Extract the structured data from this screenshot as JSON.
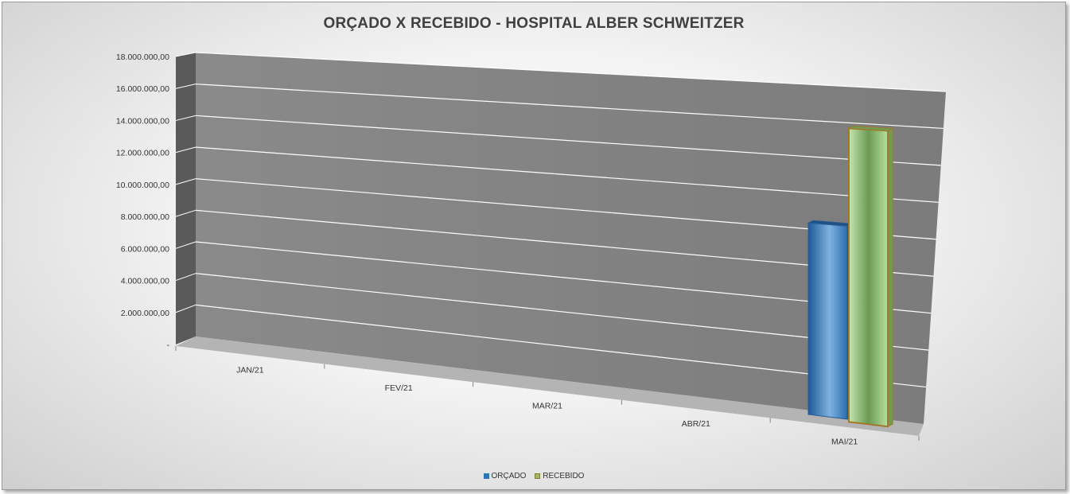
{
  "chart_data": {
    "type": "bar",
    "title": "ORÇADO X RECEBIDO - HOSPITAL ALBER SCHWEITZER",
    "categories": [
      "JAN/21",
      "FEV/21",
      "MAR/21",
      "ABR/21",
      "MAI/21"
    ],
    "series": [
      {
        "name": "ORÇADO",
        "values": [
          null,
          null,
          null,
          null,
          10200000
        ],
        "color": "#2e75b6"
      },
      {
        "name": "RECEBIDO",
        "values": [
          null,
          null,
          null,
          null,
          15500000
        ],
        "color": "#9bd37e"
      }
    ],
    "yticks": [
      "-",
      "2.000.000,00",
      "4.000.000,00",
      "6.000.000,00",
      "8.000.000,00",
      "10.000.000,00",
      "12.000.000,00",
      "14.000.000,00",
      "16.000.000,00",
      "18.000.000,00"
    ],
    "ylim": [
      0,
      18000000
    ],
    "grid": true,
    "legend_position": "bottom"
  }
}
